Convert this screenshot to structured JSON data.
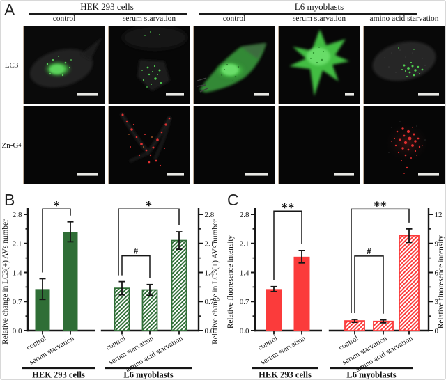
{
  "panels": {
    "a": "A",
    "b": "B",
    "c": "C"
  },
  "panel_a": {
    "groups": [
      {
        "label": "HEK 293 cells",
        "columns": [
          "control",
          "serum starvation"
        ]
      },
      {
        "label": "L6 myoblasts",
        "columns": [
          "control",
          "serum starvation",
          "amino acid starvation"
        ]
      }
    ],
    "row_labels": [
      {
        "text": "LC3"
      },
      {
        "text": "Zn-G",
        "sub": "4"
      }
    ],
    "micrographs": [
      {
        "row": "LC3",
        "group": "HEK 293 cells",
        "condition": "control",
        "content": "cell with diffuse green LC3 fluorescence"
      },
      {
        "row": "LC3",
        "group": "HEK 293 cells",
        "condition": "serum starvation",
        "content": "dim cell with green LC3 puncta"
      },
      {
        "row": "LC3",
        "group": "L6 myoblasts",
        "condition": "control",
        "content": "large cell with bright green fluorescence"
      },
      {
        "row": "LC3",
        "group": "L6 myoblasts",
        "condition": "serum starvation",
        "content": "star-shaped cell with bright green fluorescence"
      },
      {
        "row": "LC3",
        "group": "L6 myoblasts",
        "condition": "amino acid starvation",
        "content": "dim cell with green LC3 puncta"
      },
      {
        "row": "Zn-G4",
        "group": "HEK 293 cells",
        "condition": "control",
        "content": "dark field"
      },
      {
        "row": "Zn-G4",
        "group": "HEK 293 cells",
        "condition": "serum starvation",
        "content": "red punctate fluorescence along cell branches"
      },
      {
        "row": "Zn-G4",
        "group": "L6 myoblasts",
        "condition": "control",
        "content": "dark field"
      },
      {
        "row": "Zn-G4",
        "group": "L6 myoblasts",
        "condition": "serum starvation",
        "content": "dark field"
      },
      {
        "row": "Zn-G4",
        "group": "L6 myoblasts",
        "condition": "amino acid starvation",
        "content": "red punctate fluorescence cluster"
      }
    ]
  },
  "chart_data": [
    {
      "panel": "B",
      "type": "bar",
      "ylabel_left": "Relative change in LC3(+) AVs number",
      "ylabel_right": "Relative change in LC3(+) AVs number",
      "bar_color": "#2f6e36",
      "legend": "none",
      "grid": false,
      "subplots": [
        {
          "group_label": "HEK 293 cells",
          "style": "solid",
          "axis_side": "left",
          "ylim": [
            0,
            2.8
          ],
          "yticks": [
            "0.0",
            "0.7",
            "1.4",
            "2.1",
            "2.8"
          ],
          "categories": [
            "control",
            "serum starvation"
          ],
          "values": [
            1.0,
            2.38
          ],
          "errors": [
            0.25,
            0.24
          ],
          "significance": [
            {
              "a": 0,
              "b": 1,
              "symbol": "*",
              "height": 2.93
            }
          ]
        },
        {
          "group_label": "L6 myoblasts",
          "style": "hatched",
          "axis_side": "right",
          "ylim": [
            0,
            2.8
          ],
          "yticks": [
            "0.0",
            "0.7",
            "1.4",
            "2.1",
            "2.8"
          ],
          "categories": [
            "control",
            "serum starvation",
            "amino acid starvation"
          ],
          "values": [
            1.02,
            0.98,
            2.17
          ],
          "errors": [
            0.16,
            0.13,
            0.21
          ],
          "significance": [
            {
              "a": 0,
              "b": 1,
              "symbol": "#",
              "height": 1.8
            },
            {
              "a": 0,
              "b": 2,
              "symbol": "*",
              "height": 2.93
            }
          ]
        }
      ]
    },
    {
      "panel": "C",
      "type": "bar",
      "ylabel_left": "Relative fluoresence intensity",
      "ylabel_right": "Relative fluoresence intensity",
      "bar_color": "#fb3b3b",
      "legend": "none",
      "grid": false,
      "subplots": [
        {
          "group_label": "HEK 293 cells",
          "style": "solid",
          "axis_side": "left",
          "ylim": [
            0,
            2.8
          ],
          "yticks": [
            "0.0",
            "0.7",
            "1.4",
            "2.1",
            "2.8"
          ],
          "categories": [
            "control",
            "serum starvation"
          ],
          "values": [
            1.0,
            1.78
          ],
          "errors": [
            0.06,
            0.15
          ],
          "significance": [
            {
              "a": 0,
              "b": 1,
              "symbol": "**",
              "height": 2.88
            }
          ]
        },
        {
          "group_label": "L6 myoblasts",
          "style": "hatched",
          "axis_side": "right",
          "ylim": [
            0,
            12
          ],
          "yticks": [
            "0",
            "3",
            "6",
            "9",
            "12"
          ],
          "categories": [
            "control",
            "serum starvation",
            "amino acid starvation"
          ],
          "values": [
            1.0,
            0.95,
            9.8
          ],
          "errors": [
            0.15,
            0.15,
            0.7
          ],
          "significance": [
            {
              "a": 0,
              "b": 1,
              "symbol": "#",
              "height": 7.7
            },
            {
              "a": 0,
              "b": 2,
              "symbol": "**",
              "height": 12.55
            }
          ]
        }
      ]
    }
  ]
}
